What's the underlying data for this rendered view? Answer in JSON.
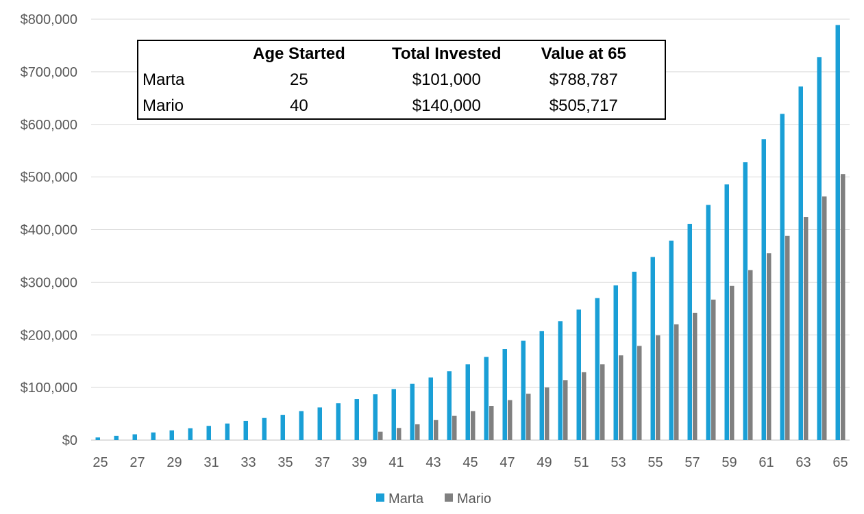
{
  "chart_data": {
    "type": "bar",
    "title": "",
    "xlabel": "",
    "ylabel": "",
    "ylim": [
      0,
      800000
    ],
    "y_ticks": [
      "$0",
      "$100,000",
      "$200,000",
      "$300,000",
      "$400,000",
      "$500,000",
      "$600,000",
      "$700,000",
      "$800,000"
    ],
    "x_tick_labels": [
      "25",
      "27",
      "29",
      "31",
      "33",
      "35",
      "37",
      "39",
      "41",
      "43",
      "45",
      "47",
      "49",
      "51",
      "53",
      "55",
      "57",
      "59",
      "61",
      "63",
      "65"
    ],
    "categories": [
      25,
      26,
      27,
      28,
      29,
      30,
      31,
      32,
      33,
      34,
      35,
      36,
      37,
      38,
      39,
      40,
      41,
      42,
      43,
      44,
      45,
      46,
      47,
      48,
      49,
      50,
      51,
      52,
      53,
      54,
      55,
      56,
      57,
      58,
      59,
      60,
      61,
      62,
      63,
      64,
      65
    ],
    "series": [
      {
        "name": "Marta",
        "color": "#1A9FD6",
        "values": [
          5000,
          8000,
          11000,
          14500,
          18500,
          22500,
          27000,
          31500,
          36500,
          42000,
          48000,
          55000,
          62000,
          70000,
          78000,
          87000,
          97000,
          107000,
          119000,
          131000,
          144000,
          158000,
          173000,
          189000,
          207000,
          226000,
          248000,
          270000,
          294000,
          320000,
          348000,
          379000,
          411000,
          447000,
          486000,
          528000,
          572000,
          620000,
          672000,
          728000,
          788787
        ]
      },
      {
        "name": "Mario",
        "color": "#808080",
        "values": [
          0,
          0,
          0,
          0,
          0,
          0,
          0,
          0,
          0,
          0,
          0,
          0,
          0,
          0,
          0,
          16000,
          23000,
          30000,
          38000,
          46000,
          55000,
          65000,
          76000,
          88000,
          100000,
          114000,
          129000,
          144000,
          161000,
          179000,
          199000,
          220000,
          242000,
          267000,
          293000,
          323000,
          355000,
          388000,
          424000,
          463000,
          505717
        ]
      }
    ],
    "legend_position": "bottom",
    "gridlines": true
  },
  "summary_table": {
    "headers": [
      "",
      "Age Started",
      "Total Invested",
      "Value at 65"
    ],
    "rows": [
      {
        "name": "Marta",
        "age_started": "25",
        "total_invested": "$101,000",
        "value_at_65": "$788,787"
      },
      {
        "name": "Mario",
        "age_started": "40",
        "total_invested": "$140,000",
        "value_at_65": "$505,717"
      }
    ]
  },
  "legend": [
    {
      "label": "Marta",
      "color": "#1A9FD6"
    },
    {
      "label": "Mario",
      "color": "#808080"
    }
  ]
}
